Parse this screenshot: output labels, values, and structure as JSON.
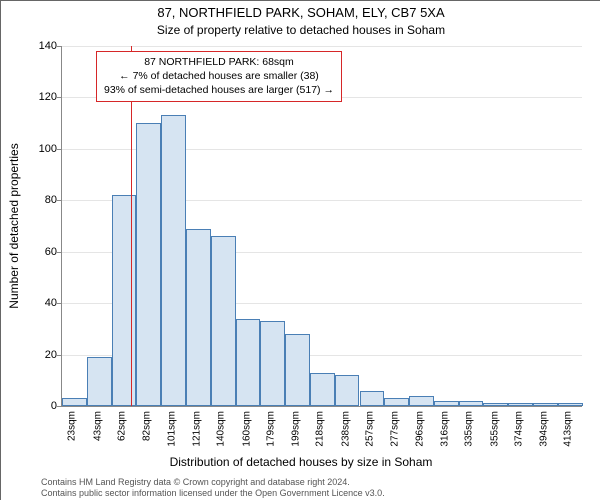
{
  "chart": {
    "type": "histogram",
    "title_line1": "87, NORTHFIELD PARK, SOHAM, ELY, CB7 5XA",
    "title_line2": "Size of property relative to detached houses in Soham",
    "ylabel": "Number of detached properties",
    "xlabel": "Distribution of detached houses by size in Soham",
    "ylim": [
      0,
      140
    ],
    "ytick_step": 20,
    "yticks": [
      0,
      20,
      40,
      60,
      80,
      100,
      120,
      140
    ],
    "xtick_labels": [
      "23sqm",
      "43sqm",
      "62sqm",
      "82sqm",
      "101sqm",
      "121sqm",
      "140sqm",
      "160sqm",
      "179sqm",
      "199sqm",
      "218sqm",
      "238sqm",
      "257sqm",
      "277sqm",
      "296sqm",
      "316sqm",
      "335sqm",
      "355sqm",
      "374sqm",
      "394sqm",
      "413sqm"
    ],
    "xtick_positions": [
      23,
      43,
      62,
      82,
      101,
      121,
      140,
      160,
      179,
      199,
      218,
      238,
      257,
      277,
      296,
      316,
      335,
      355,
      374,
      394,
      413
    ],
    "x_range": [
      14,
      423
    ],
    "marker_x": 68,
    "marker_color": "#d62728",
    "bars": [
      {
        "start": 14,
        "end": 33.5,
        "value": 3
      },
      {
        "start": 33.5,
        "end": 53,
        "value": 19
      },
      {
        "start": 53,
        "end": 72.5,
        "value": 82
      },
      {
        "start": 72.5,
        "end": 92,
        "value": 110
      },
      {
        "start": 92,
        "end": 111.5,
        "value": 113
      },
      {
        "start": 111.5,
        "end": 131,
        "value": 69
      },
      {
        "start": 131,
        "end": 150.5,
        "value": 66
      },
      {
        "start": 150.5,
        "end": 170,
        "value": 34
      },
      {
        "start": 170,
        "end": 189.5,
        "value": 33
      },
      {
        "start": 189.5,
        "end": 209,
        "value": 28
      },
      {
        "start": 209,
        "end": 228.5,
        "value": 13
      },
      {
        "start": 228.5,
        "end": 248,
        "value": 12
      },
      {
        "start": 248,
        "end": 267.5,
        "value": 6
      },
      {
        "start": 267.5,
        "end": 287,
        "value": 3
      },
      {
        "start": 287,
        "end": 306.5,
        "value": 4
      },
      {
        "start": 306.5,
        "end": 326,
        "value": 2
      },
      {
        "start": 326,
        "end": 345.5,
        "value": 2
      },
      {
        "start": 345.5,
        "end": 365,
        "value": 1
      },
      {
        "start": 365,
        "end": 384.5,
        "value": 1
      },
      {
        "start": 384.5,
        "end": 404,
        "value": 1
      },
      {
        "start": 404,
        "end": 423.5,
        "value": 1
      }
    ],
    "bar_fill": "#d6e4f2",
    "bar_border": "#4a7fb5",
    "background_color": "#ffffff",
    "grid_color": "#e5e5e5",
    "axis_color": "#888888",
    "title_fontsize": 13,
    "subtitle_fontsize": 12,
    "label_fontsize": 12,
    "tick_fontsize": 11
  },
  "info_box": {
    "line1": "87 NORTHFIELD PARK: 68sqm",
    "line2": "← 7% of detached houses are smaller (38)",
    "line3": "93% of semi-detached houses are larger (517) →",
    "border_color": "#d62728",
    "fontsize": 10.5
  },
  "footer": {
    "line1": "Contains HM Land Registry data © Crown copyright and database right 2024.",
    "line2": "Contains public sector information licensed under the Open Government Licence v3.0.",
    "fontsize": 9,
    "color": "#555555"
  }
}
